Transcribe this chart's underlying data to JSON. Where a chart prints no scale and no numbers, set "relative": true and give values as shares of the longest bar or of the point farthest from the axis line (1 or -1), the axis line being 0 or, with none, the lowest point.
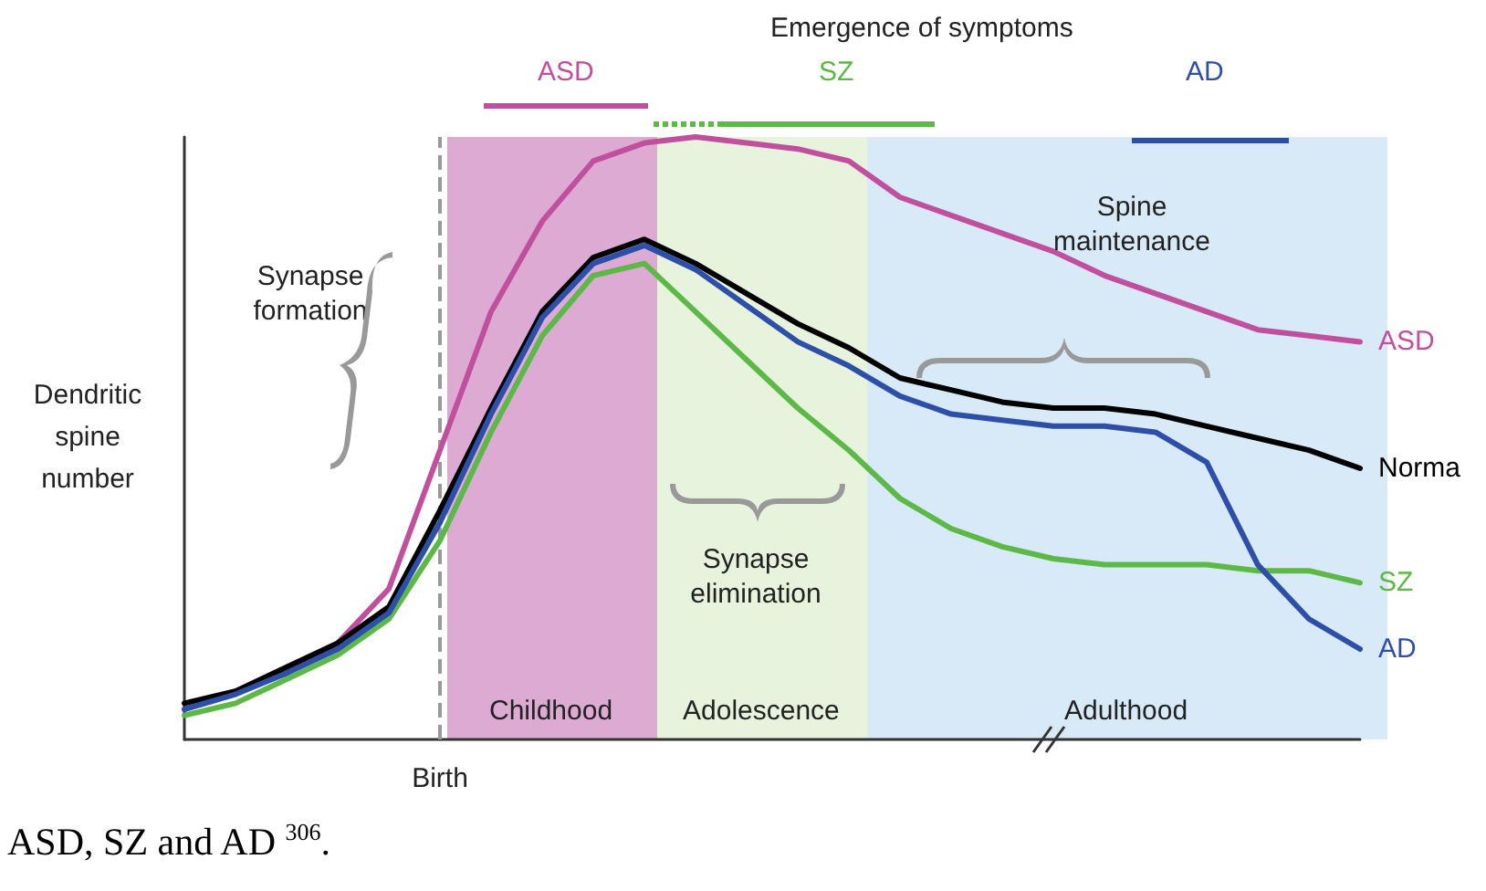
{
  "chart_data": {
    "type": "line",
    "relative": true,
    "ylabel": "Dendritic spine number",
    "grid": false,
    "legend": false,
    "marker": "none",
    "line_style": "solid",
    "categories": [
      null,
      null,
      null,
      null,
      null,
      null,
      null,
      null,
      null,
      null,
      null,
      null,
      null,
      null,
      null,
      null,
      null,
      null,
      null,
      null,
      null,
      null,
      null,
      null
    ],
    "series": [
      {
        "name": "ASD",
        "color": "#c0509e",
        "values": [
          0.05,
          0.08,
          0.11,
          0.16,
          0.25,
          0.48,
          0.71,
          0.86,
          0.96,
          0.99,
          1,
          0.99,
          0.98,
          0.96,
          0.9,
          0.87,
          0.84,
          0.81,
          0.77,
          0.74,
          0.71,
          0.68,
          0.67,
          0.66
        ]
      },
      {
        "name": "Norma",
        "color": "#000000",
        "values": [
          0.06,
          0.08,
          0.12,
          0.16,
          0.22,
          0.38,
          0.55,
          0.71,
          0.8,
          0.83,
          0.79,
          0.74,
          0.69,
          0.65,
          0.6,
          0.58,
          0.56,
          0.55,
          0.55,
          0.54,
          0.52,
          0.5,
          0.48,
          0.45
        ]
      },
      {
        "name": "SZ",
        "color": "#5cb947",
        "values": [
          0.04,
          0.06,
          0.1,
          0.14,
          0.2,
          0.33,
          0.51,
          0.67,
          0.77,
          0.79,
          0.71,
          0.63,
          0.55,
          0.48,
          0.4,
          0.35,
          0.32,
          0.3,
          0.29,
          0.29,
          0.29,
          0.28,
          0.28,
          0.26
        ]
      },
      {
        "name": "AD",
        "color": "#2e4fa8",
        "values": [
          0.05,
          0.075,
          0.11,
          0.15,
          0.21,
          0.36,
          0.54,
          0.7,
          0.79,
          0.82,
          0.78,
          0.72,
          0.66,
          0.62,
          0.57,
          0.54,
          0.53,
          0.52,
          0.52,
          0.51,
          0.46,
          0.29,
          0.2,
          0.15
        ]
      }
    ],
    "ref_lines": [
      {
        "axis": "x",
        "label": "Birth",
        "color": "#999999",
        "line_style": "dashed"
      }
    ],
    "annotations": [
      "Emergence of symptoms",
      "ASD",
      "SZ",
      "AD",
      "Synapse formation",
      "Synapse elimination",
      "Spine maintenance",
      "ASD, SZ and AD $^{306}$.",
      "Childhood",
      "Adolescence",
      "Adulthood"
    ]
  }
}
